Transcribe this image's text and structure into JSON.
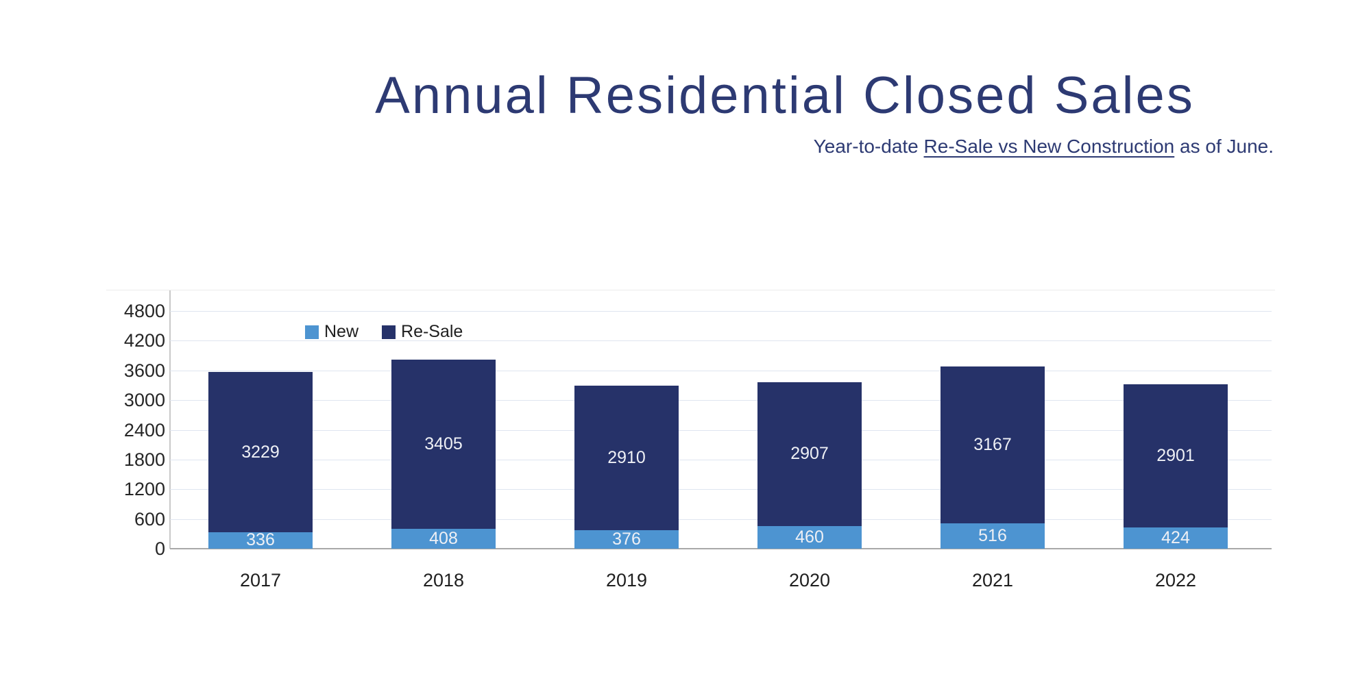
{
  "title": "Annual Residential Closed Sales",
  "subtitle": {
    "prefix": "Year-to-date ",
    "underlined": "Re-Sale vs New Construction",
    "suffix": " as of June."
  },
  "legend": [
    {
      "label": "New",
      "color": "#4D94D1"
    },
    {
      "label": "Re-Sale",
      "color": "#263269"
    }
  ],
  "chart_data": {
    "type": "bar",
    "stacked": true,
    "title": "Annual Residential Closed Sales",
    "subtitle": "Year-to-date Re-Sale vs New Construction as of June.",
    "categories": [
      "2017",
      "2018",
      "2019",
      "2020",
      "2021",
      "2022"
    ],
    "series": [
      {
        "name": "New",
        "color": "#4D94D1",
        "values": [
          336,
          408,
          376,
          460,
          516,
          424
        ]
      },
      {
        "name": "Re-Sale",
        "color": "#263269",
        "values": [
          3229,
          3405,
          2910,
          2907,
          3167,
          2901
        ]
      }
    ],
    "totals": [
      3565,
      3813,
      3286,
      3367,
      3683,
      3325
    ],
    "xlabel": "",
    "ylabel": "",
    "ylim": [
      0,
      4800
    ],
    "yticks": [
      0,
      600,
      1200,
      1800,
      2400,
      3000,
      3600,
      4200,
      4800
    ],
    "grid": true,
    "legend_position": "top-left-inside"
  },
  "colors": {
    "title_text": "#2d3a73",
    "subtitle_text": "#2d3a73",
    "tick_text": "#262626",
    "category_text": "#1f1f1f",
    "bar_value_text": "#eef0f5",
    "gridline": "#dfe5f0",
    "baseline": "#a8a8a8",
    "axis_line": "#c9c9c9",
    "background": "#ffffff"
  }
}
